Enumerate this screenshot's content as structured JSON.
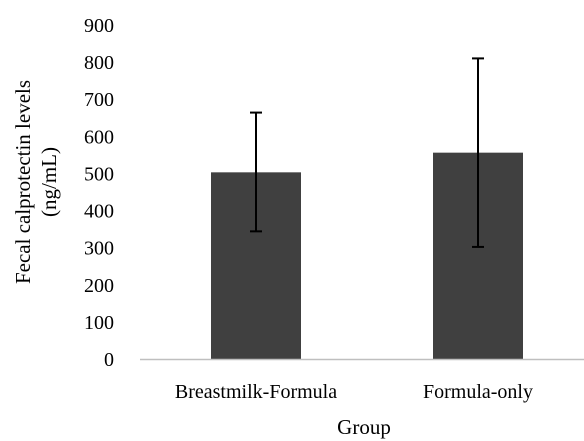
{
  "colors": {
    "bar": "#404040",
    "axis": "#bfbfbf",
    "error_bar": "#000000"
  },
  "chart_data": {
    "type": "bar",
    "categories": [
      "Breastmilk-Formula",
      "Formula-only"
    ],
    "values": [
      503,
      556
    ],
    "error_low": [
      344,
      302
    ],
    "error_high": [
      664,
      810
    ],
    "xlabel": "Group",
    "ylabel_lines": [
      "Fecal calprotectin levels",
      "(ng/mL)"
    ],
    "ylim": [
      0,
      900
    ],
    "yticks": [
      "0",
      "100",
      "200",
      "300",
      "400",
      "500",
      "600",
      "700",
      "800",
      "900"
    ],
    "grid": false,
    "legend": "none"
  }
}
